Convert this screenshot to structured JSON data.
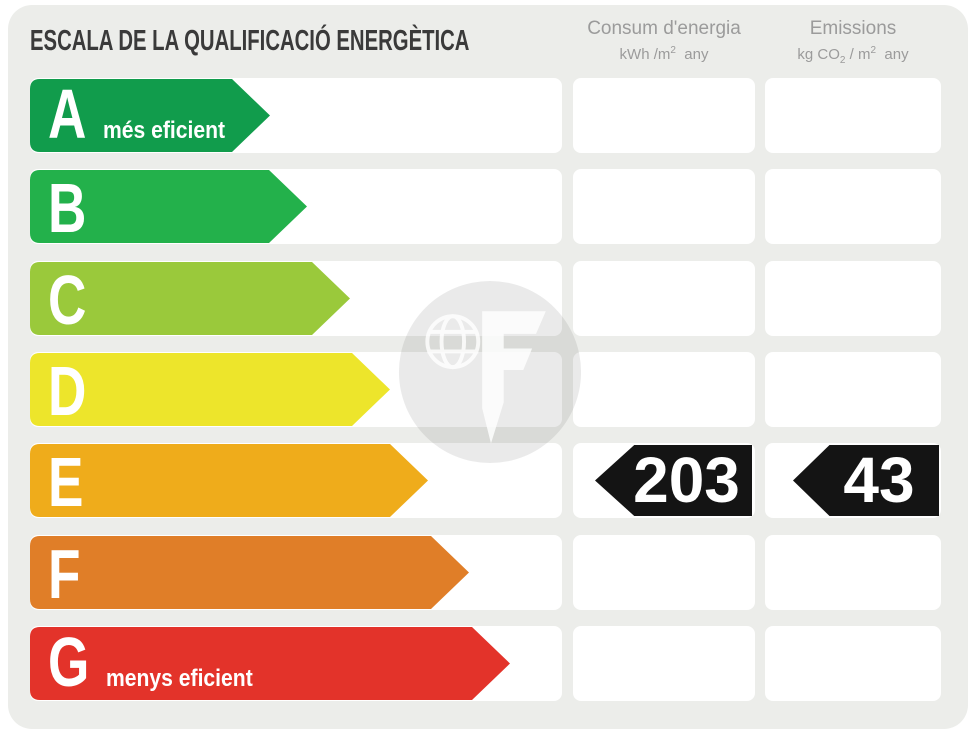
{
  "title": "ESCALA DE LA QUALIFICACIÓ ENERGÈTICA",
  "columns": {
    "consum": {
      "title": "Consum d'energia",
      "unit_pre": "kWh /m",
      "unit_sup": "2",
      "unit_post": "  any"
    },
    "emissions": {
      "title": "Emissions",
      "unit_pre": "kg CO",
      "unit_sub": "2",
      "unit_mid": " / m",
      "unit_sup": "2",
      "unit_post": "  any"
    }
  },
  "scale": {
    "rows": [
      {
        "letter": "A",
        "label": "més eficient",
        "color": "#119c4c",
        "arrow_width": 240,
        "consum": "",
        "emissions": ""
      },
      {
        "letter": "B",
        "label": "",
        "color": "#23b14b",
        "arrow_width": 277,
        "consum": "",
        "emissions": ""
      },
      {
        "letter": "C",
        "label": "",
        "color": "#9ac93b",
        "arrow_width": 320,
        "consum": "",
        "emissions": ""
      },
      {
        "letter": "D",
        "label": "",
        "color": "#ede52b",
        "arrow_width": 360,
        "consum": "",
        "emissions": ""
      },
      {
        "letter": "E",
        "label": "",
        "color": "#efac1b",
        "arrow_width": 398,
        "consum": "203",
        "emissions": "43"
      },
      {
        "letter": "F",
        "label": "",
        "color": "#e07e28",
        "arrow_width": 439,
        "consum": "",
        "emissions": ""
      },
      {
        "letter": "G",
        "label": "menys eficient",
        "color": "#e3332a",
        "arrow_width": 480,
        "consum": "",
        "emissions": ""
      }
    ]
  },
  "watermark": {
    "icon": "globe-f-logo"
  },
  "chart_data": {
    "type": "bar",
    "title": "ESCALA DE LA QUALIFICACIÓ ENERGÈTICA",
    "categories": [
      "A",
      "B",
      "C",
      "D",
      "E",
      "F",
      "G"
    ],
    "series": [
      {
        "name": "scale_arrow_relative_length",
        "values": [
          240,
          277,
          320,
          360,
          398,
          439,
          480
        ]
      }
    ],
    "bar_colors": [
      "#119c4c",
      "#23b14b",
      "#9ac93b",
      "#ede52b",
      "#efac1b",
      "#e07e28",
      "#e3332a"
    ],
    "annotations": {
      "A": "més eficient",
      "G": "menys eficient"
    },
    "rating": "E",
    "consum_energia_kwh_m2_any": 203,
    "emissions_kg_co2_m2_any": 43,
    "column_headers": [
      "Consum d'energia kWh /m2 any",
      "Emissions kg CO2 / m2 any"
    ],
    "legend_position": "none",
    "grid": false
  }
}
